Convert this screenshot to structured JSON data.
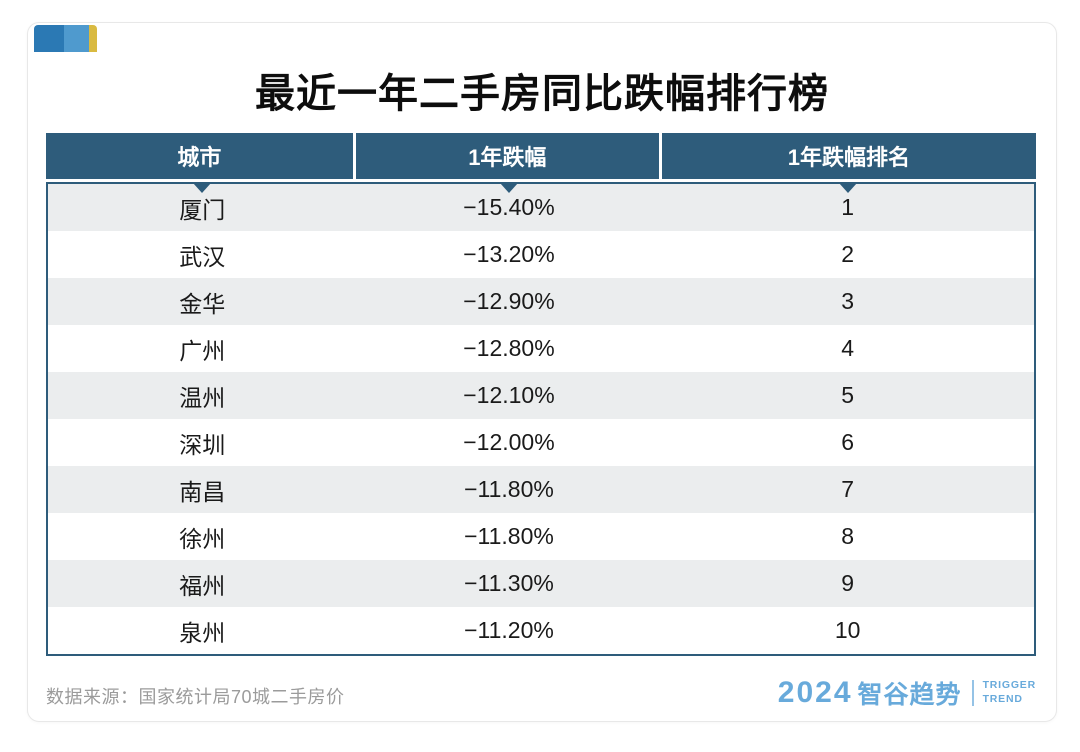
{
  "page": {
    "title": "最近一年二手房同比跌幅排行榜",
    "source_note": "数据来源：国家统计局70城二手房价"
  },
  "table": {
    "columns": [
      "城市",
      "1年跌幅",
      "1年跌幅排名"
    ],
    "rows": [
      {
        "city": "厦门",
        "drop": "−15.40%",
        "rank": "1"
      },
      {
        "city": "武汉",
        "drop": "−13.20%",
        "rank": "2"
      },
      {
        "city": "金华",
        "drop": "−12.90%",
        "rank": "3"
      },
      {
        "city": "广州",
        "drop": "−12.80%",
        "rank": "4"
      },
      {
        "city": "温州",
        "drop": "−12.10%",
        "rank": "5"
      },
      {
        "city": "深圳",
        "drop": "−12.00%",
        "rank": "6"
      },
      {
        "city": "南昌",
        "drop": "−11.80%",
        "rank": "7"
      },
      {
        "city": "徐州",
        "drop": "−11.80%",
        "rank": "8"
      },
      {
        "city": "福州",
        "drop": "−11.30%",
        "rank": "9"
      },
      {
        "city": "泉州",
        "drop": "−11.20%",
        "rank": "10"
      }
    ]
  },
  "chart_data": {
    "type": "table",
    "title": "最近一年二手房同比跌幅排行榜",
    "columns": [
      "城市",
      "1年跌幅",
      "1年跌幅排名"
    ],
    "rows": [
      [
        "厦门",
        "−15.40%",
        1
      ],
      [
        "武汉",
        "−13.20%",
        2
      ],
      [
        "金华",
        "−12.90%",
        3
      ],
      [
        "广州",
        "−12.80%",
        4
      ],
      [
        "温州",
        "−12.10%",
        5
      ],
      [
        "深圳",
        "−12.00%",
        6
      ],
      [
        "南昌",
        "−11.80%",
        7
      ],
      [
        "徐州",
        "−11.80%",
        8
      ],
      [
        "福州",
        "−11.30%",
        9
      ],
      [
        "泉州",
        "−11.20%",
        10
      ]
    ],
    "drop_pct_numeric": [
      -15.4,
      -13.2,
      -12.9,
      -12.8,
      -12.1,
      -12.0,
      -11.8,
      -11.8,
      -11.3,
      -11.2
    ],
    "source": "数据来源：国家统计局70城二手房价"
  },
  "brand": {
    "year": "2024",
    "name": "智谷趋势",
    "sub_line1": "TRIGGER",
    "sub_line2": "TREND"
  },
  "theme": {
    "header_bg": "#2e5c7b",
    "row_alt_bg": "#ebedee",
    "brand_blue": "#68aadb",
    "tab_dark_blue": "#2b79b4",
    "tab_light_blue": "#4f9ace",
    "tab_yellow": "#d9ba41"
  }
}
